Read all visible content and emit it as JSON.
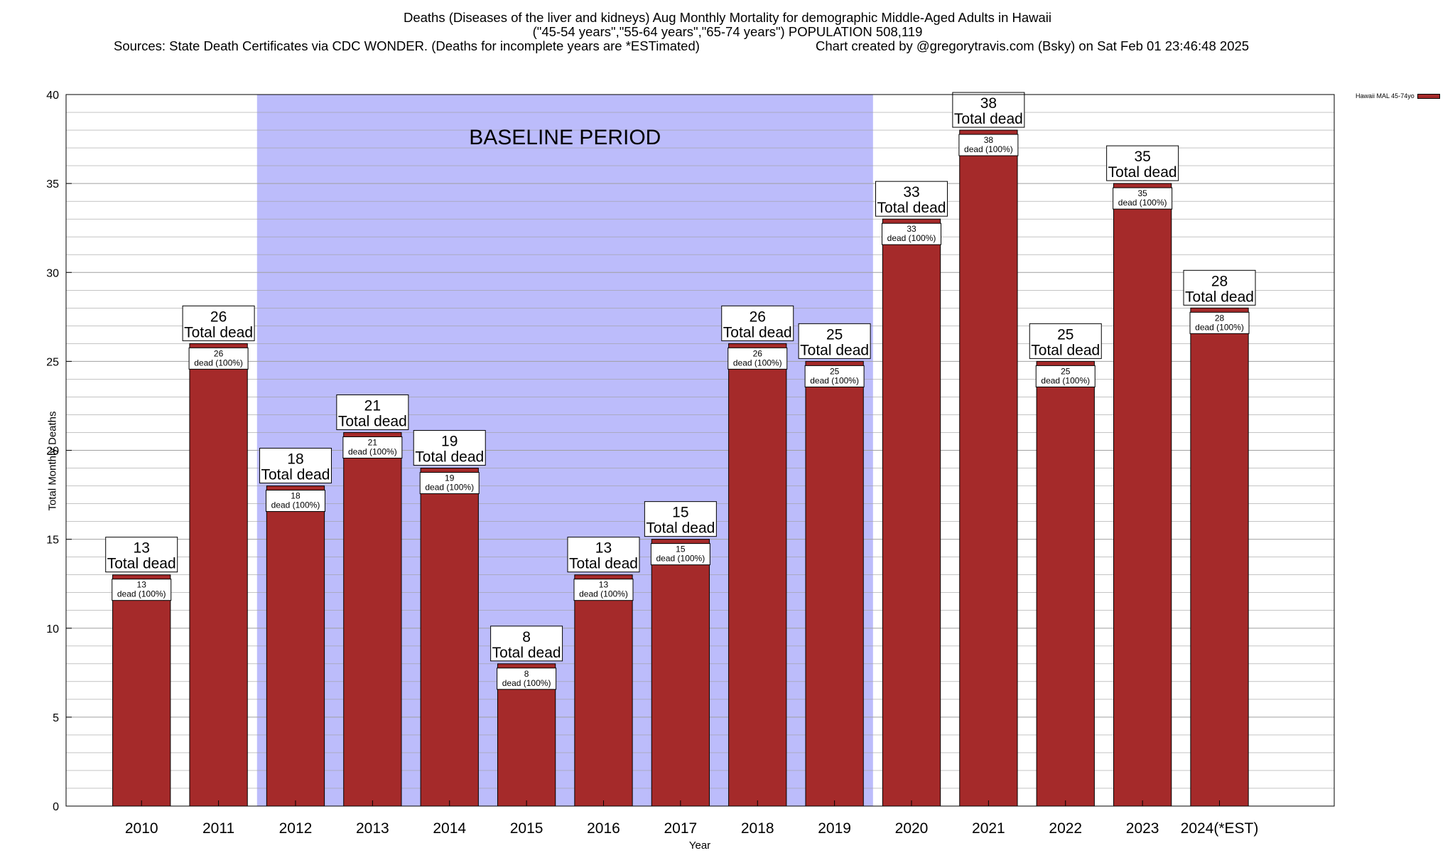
{
  "title": {
    "line1": "Deaths (Diseases of the liver and kidneys) Aug Monthly Mortality for demographic Middle-Aged Adults in Hawaii",
    "line2": "(\"45-54 years\",\"55-64 years\",\"65-74 years\") POPULATION 508,119",
    "sources": "Sources: State Death Certificates via CDC WONDER. (Deaths for incomplete years are *ESTimated)",
    "credit": "Chart created by @gregorytravis.com (Bsky) on Sat Feb 01 23:46:48 2025"
  },
  "chart_data": {
    "type": "bar",
    "categories": [
      "2010",
      "2011",
      "2012",
      "2013",
      "2014",
      "2015",
      "2016",
      "2017",
      "2018",
      "2019",
      "2020",
      "2021",
      "2022",
      "2023",
      "2024(*EST)"
    ],
    "series": [
      {
        "name": "Hawaii MAL 45-74yo",
        "values": [
          13,
          26,
          18,
          21,
          19,
          8,
          13,
          15,
          26,
          25,
          33,
          38,
          25,
          35,
          28
        ]
      }
    ],
    "xlabel": "Year",
    "ylabel": "Total Monthly Deaths",
    "ylim": [
      0,
      40
    ],
    "yticks": [
      0,
      5,
      10,
      15,
      20,
      25,
      30,
      35,
      40
    ],
    "grid": true,
    "legend_position": "top-right",
    "top_label_suffix": "Total dead",
    "inner_label_suffix": "dead (100%)",
    "baseline": {
      "label": "BASELINE PERIOD",
      "start": "2012",
      "end": "2019",
      "color": "#bcbcfb"
    },
    "colors": {
      "bar": "#a52a2a",
      "grid": "#a0a0a0"
    }
  }
}
